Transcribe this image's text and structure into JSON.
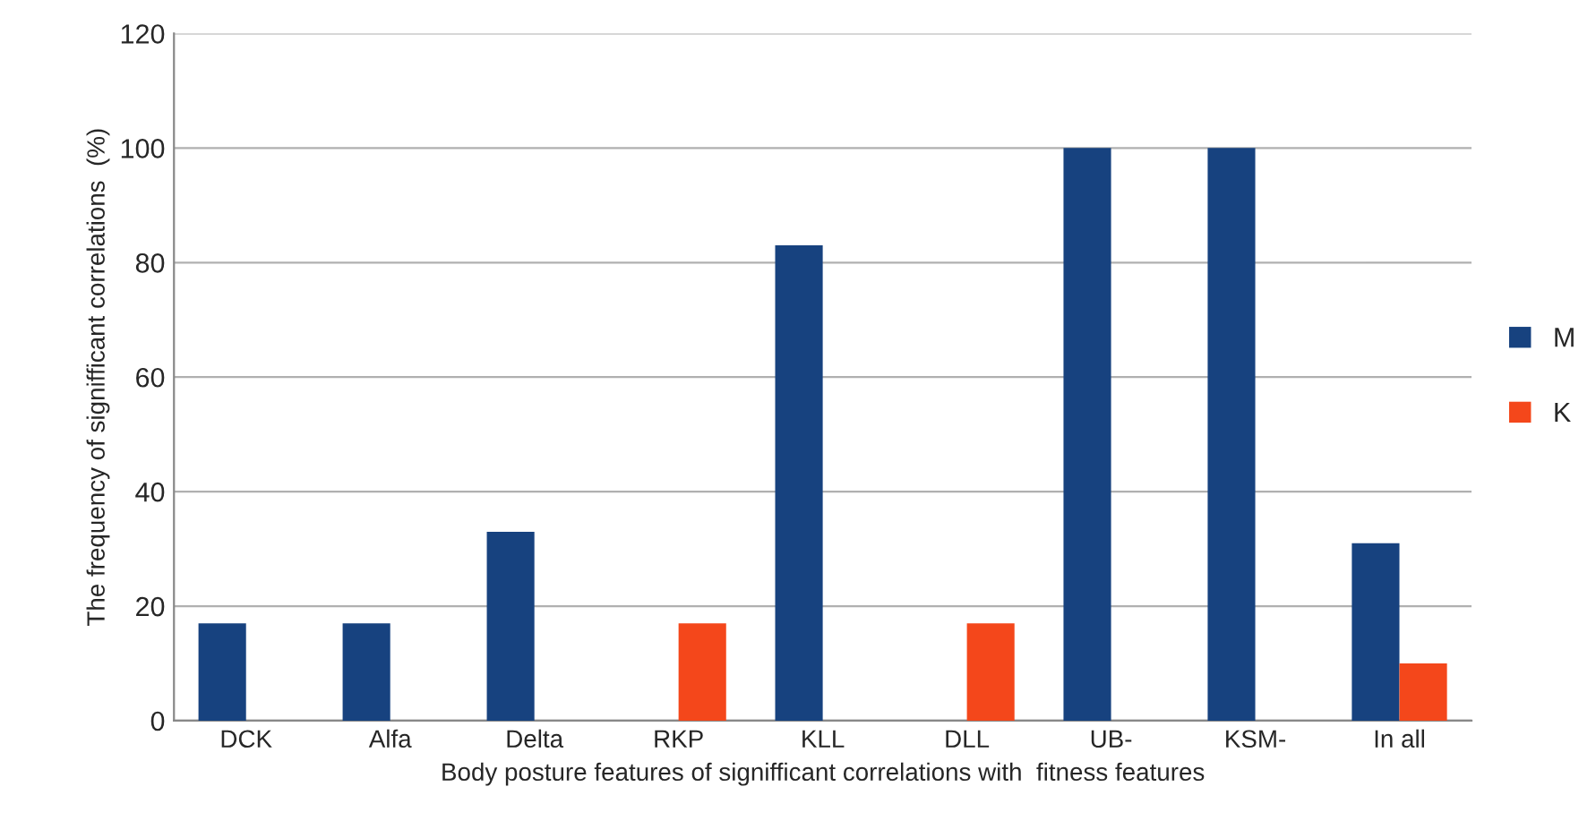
{
  "chart_data": {
    "type": "bar",
    "xlabel": "Body posture features of signifficant correlations with  fitness features",
    "ylabel": "The frequency of signifficant correlations  (%)",
    "categories": [
      "DCK",
      "Alfa",
      "Delta",
      "RKP",
      "KLL",
      "DLL",
      "UB-",
      "KSM-",
      "In all"
    ],
    "series": [
      {
        "name": "M",
        "color": "#17427f",
        "values": [
          17,
          17,
          33,
          null,
          83,
          null,
          100,
          100,
          31
        ]
      },
      {
        "name": "K",
        "color": "#f4471b",
        "values": [
          null,
          null,
          null,
          17,
          null,
          17,
          null,
          null,
          10
        ]
      }
    ],
    "ylim": [
      0,
      120
    ],
    "yticks": [
      0,
      20,
      40,
      60,
      80,
      100,
      120
    ],
    "grid": "y",
    "legend": "right"
  }
}
